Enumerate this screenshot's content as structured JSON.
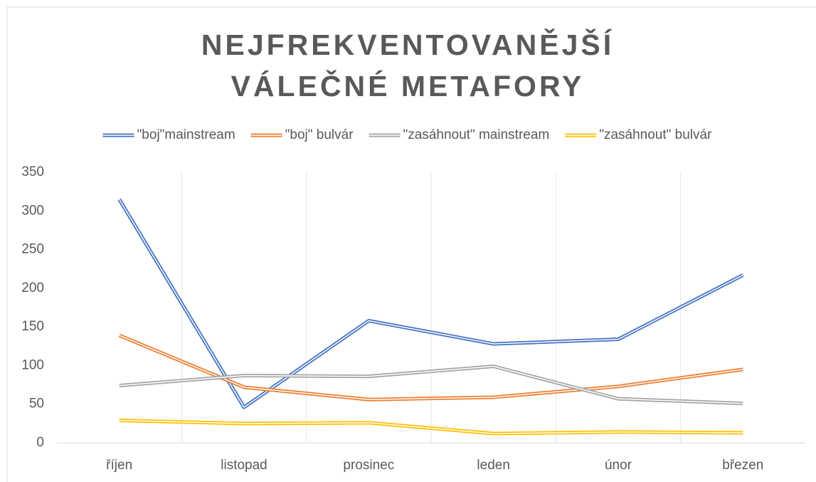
{
  "chart_data": {
    "type": "line",
    "title": "NEJFREKVENTOVANĚJŠÍ VÁLEČNÉ METAFORY",
    "categories": [
      "říjen",
      "listopad",
      "prosinec",
      "leden",
      "únor",
      "březen"
    ],
    "series": [
      {
        "name": "\"boj\"mainstream",
        "color": "#4472c4",
        "values": [
          315,
          46,
          158,
          128,
          134,
          217
        ]
      },
      {
        "name": "\"boj\" bulvár",
        "color": "#ed7d31",
        "values": [
          139,
          72,
          56,
          59,
          73,
          95
        ]
      },
      {
        "name": "\"zasáhnout\" mainstream",
        "color": "#a5a5a5",
        "values": [
          74,
          87,
          86,
          99,
          57,
          51
        ]
      },
      {
        "name": "\"zasáhnout\" bulvár",
        "color": "#ffc000",
        "values": [
          29,
          25,
          26,
          12,
          14,
          13
        ]
      }
    ],
    "ylim": [
      0,
      350
    ],
    "yticks": [
      0,
      50,
      100,
      150,
      200,
      250,
      300,
      350
    ],
    "grid": "vertical",
    "legend": "top"
  }
}
